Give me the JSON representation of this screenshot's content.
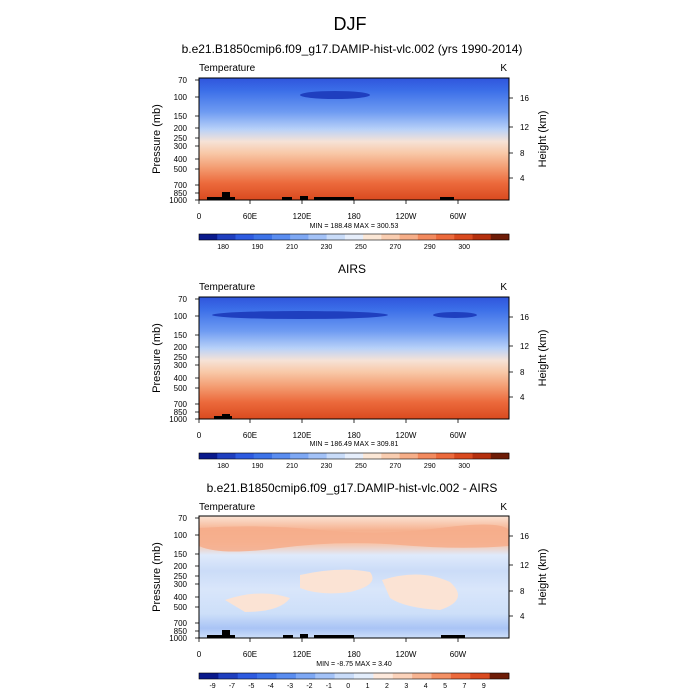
{
  "figure": {
    "title": "DJF"
  },
  "chart_data": [
    {
      "type": "heatmap",
      "title": "b.e21.B1850cmip6.f09_g17.DAMIP-hist-vlc.002 (yrs 1990-2014)",
      "left_label": "Temperature",
      "right_label": "K",
      "ylabel": "Pressure (mb)",
      "ylabel_right": "Height (km)",
      "x_ticks": [
        "0",
        "60E",
        "120E",
        "180",
        "120W",
        "60W"
      ],
      "y_ticks": [
        "70",
        "100",
        "150",
        "200",
        "250",
        "300",
        "400",
        "500",
        "700",
        "850",
        "1000"
      ],
      "height_ticks": [
        "16",
        "12",
        "8",
        "4"
      ],
      "stats": "MIN = 188.48  MAX = 300.53",
      "min": 188.48,
      "max": 300.53,
      "colorbar": {
        "labels": [
          "180",
          "190",
          "210",
          "230",
          "250",
          "270",
          "290",
          "300"
        ],
        "colors": [
          "#0a1a8c",
          "#1f3fbf",
          "#2e5be0",
          "#3d73e8",
          "#5a8df0",
          "#7ea8f4",
          "#a3c2f7",
          "#c9dcf9",
          "#e6eefb",
          "#fbe7d6",
          "#f9cdb0",
          "#f6ae88",
          "#f28a5e",
          "#ec6a3c",
          "#d94a1f",
          "#b5300e",
          "#6e1c07"
        ]
      }
    },
    {
      "type": "heatmap",
      "title": "AIRS",
      "left_label": "Temperature",
      "right_label": "K",
      "ylabel": "Pressure (mb)",
      "ylabel_right": "Height (km)",
      "x_ticks": [
        "0",
        "60E",
        "120E",
        "180",
        "120W",
        "60W"
      ],
      "y_ticks": [
        "70",
        "100",
        "150",
        "200",
        "250",
        "300",
        "400",
        "500",
        "700",
        "850",
        "1000"
      ],
      "height_ticks": [
        "16",
        "12",
        "8",
        "4"
      ],
      "stats": "MIN = 186.49  MAX = 309.81",
      "min": 186.49,
      "max": 309.81,
      "colorbar": {
        "labels": [
          "180",
          "190",
          "210",
          "230",
          "250",
          "270",
          "290",
          "300"
        ],
        "colors": [
          "#0a1a8c",
          "#1f3fbf",
          "#2e5be0",
          "#3d73e8",
          "#5a8df0",
          "#7ea8f4",
          "#a3c2f7",
          "#c9dcf9",
          "#e6eefb",
          "#fbe7d6",
          "#f9cdb0",
          "#f6ae88",
          "#f28a5e",
          "#ec6a3c",
          "#d94a1f",
          "#b5300e",
          "#6e1c07"
        ]
      }
    },
    {
      "type": "heatmap",
      "title": "b.e21.B1850cmip6.f09_g17.DAMIP-hist-vlc.002 - AIRS",
      "left_label": "Temperature",
      "right_label": "K",
      "ylabel": "Pressure (mb)",
      "ylabel_right": "Height (km)",
      "x_ticks": [
        "0",
        "60E",
        "120E",
        "180",
        "120W",
        "60W"
      ],
      "y_ticks": [
        "70",
        "100",
        "150",
        "200",
        "250",
        "300",
        "400",
        "500",
        "700",
        "850",
        "1000"
      ],
      "height_ticks": [
        "16",
        "12",
        "8",
        "4"
      ],
      "stats": "MIN = -8.75  MAX =  3.40",
      "min": -8.75,
      "max": 3.4,
      "colorbar": {
        "labels": [
          "-9",
          "-7",
          "-5",
          "-4",
          "-3",
          "-2",
          "-1",
          "0",
          "1",
          "2",
          "3",
          "4",
          "5",
          "7",
          "9"
        ],
        "colors": [
          "#0a1a8c",
          "#1f3fbf",
          "#2e5be0",
          "#3d73e8",
          "#5a8df0",
          "#7ea8f4",
          "#a3c2f7",
          "#c9dcf9",
          "#e3edfb",
          "#fde9dc",
          "#fbd3bb",
          "#f7b491",
          "#f39064",
          "#ec6a3c",
          "#d94a1f",
          "#6e1c07"
        ]
      }
    }
  ]
}
